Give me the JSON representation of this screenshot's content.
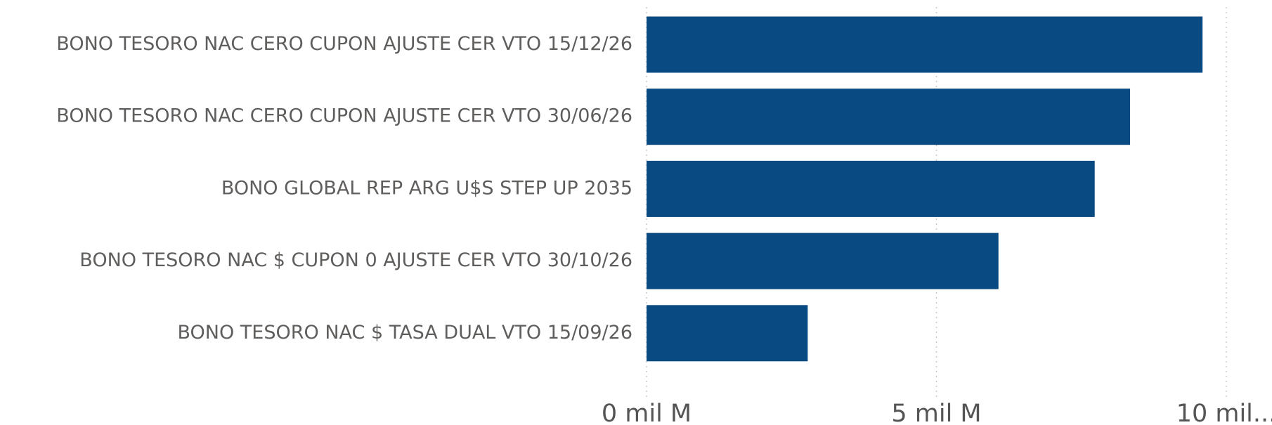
{
  "chart_data": {
    "type": "bar",
    "orientation": "horizontal",
    "categories": [
      "BONO TESORO NAC CERO CUPON AJUSTE CER VTO 15/12/26",
      "BONO TESORO NAC CERO CUPON AJUSTE CER VTO 30/06/26",
      "BONO GLOBAL REP ARG U$S STEP UP 2035",
      "BONO TESORO NAC $ CUPON 0 AJUSTE CER VTO 30/10/26",
      "BONO TESORO NAC $ TASA DUAL VTO 15/09/26"
    ],
    "values": [
      9.59,
      8.34,
      7.73,
      6.07,
      2.78
    ],
    "color": "#0a4a82",
    "xlim": [
      0,
      10
    ],
    "xticks": [
      {
        "value": 0,
        "label": "0 mil M"
      },
      {
        "value": 5,
        "label": "5 mil M"
      },
      {
        "value": 10,
        "label": "10 mil..."
      }
    ],
    "grid": true
  }
}
